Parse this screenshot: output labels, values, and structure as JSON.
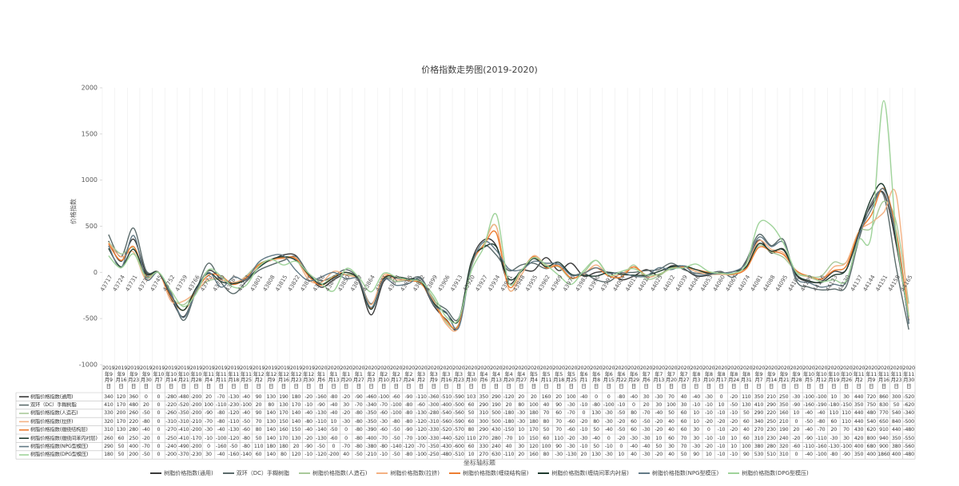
{
  "chart_data": {
    "type": "line",
    "title": "价格指数走势图(2019-2020)",
    "y_label": "价格指数",
    "x_label": "坐标轴标题",
    "categories": [
      "2019年9月9日",
      "2019年9月16日",
      "2019年9月23日",
      "2019年9月30日",
      "2019年10月7日",
      "2019年10月14日",
      "2019年10月21日",
      "2019年10月28日",
      "2019年11月4日",
      "2019年11月11日",
      "2019年11月18日",
      "2019年11月25日",
      "2019年12月2日",
      "2019年12月9日",
      "2019年12月16日",
      "2019年12月23日",
      "2019年12月30日",
      "2020年1月6日",
      "2020年1月13日",
      "2020年1月20日",
      "2020年1月27日",
      "2020年2月3日",
      "2020年2月10日",
      "2020年2月17日",
      "2020年2月24日",
      "2020年3月2日",
      "2020年3月9日",
      "2020年3月16日",
      "2020年3月23日",
      "2020年3月30日",
      "2020年4月6日",
      "2020年4月13日",
      "2020年4月20日",
      "2020年4月27日",
      "2020年5月4日",
      "2020年5月11日",
      "2020年5月18日",
      "2020年5月25日",
      "2020年6月1日",
      "2020年6月8日",
      "2020年6月15日",
      "2020年6月22日",
      "2020年6月29日",
      "2020年7月6日",
      "2020年7月13日",
      "2020年7月20日",
      "2020年7月27日",
      "2020年8月3日",
      "2020年8月10日",
      "2020年8月17日",
      "2020年8月24日",
      "2020年8月31日",
      "2020年9月7日",
      "2020年9月14日",
      "2020年9月21日",
      "2020年9月28日",
      "2020年10月5日",
      "2020年10月12日",
      "2020年10月19日",
      "2020年10月26日",
      "2020年11月2日",
      "2020年11月9日",
      "2020年11月16日",
      "2020年11月23日",
      "2020年11月30日"
    ],
    "x_tick_labels": [
      43717,
      43724,
      43731,
      43738,
      43745,
      43752,
      43759,
      43766,
      43773,
      43780,
      43787,
      43794,
      43801,
      43808,
      43815,
      43822,
      43829,
      43836,
      43843,
      43850,
      43857,
      43864,
      43871,
      43878,
      43885,
      43892,
      43899,
      43906,
      43913,
      43920,
      43927,
      43934,
      43941,
      43948,
      43955,
      43962,
      43969,
      43976,
      43983,
      43990,
      43997,
      44004,
      44011,
      44018,
      44025,
      44032,
      44039,
      44046,
      44053,
      44060,
      44067,
      44074,
      44081,
      44088,
      44095,
      44102,
      44109,
      44116,
      44123,
      44130,
      44137,
      44144,
      44151,
      44158,
      44165
    ],
    "ylim": [
      -1000,
      2000
    ],
    "yticks": [
      2000,
      1500,
      1000,
      500,
      0,
      -500,
      -1000
    ],
    "series": [
      {
        "name": "树脂价格指数(通用)",
        "color": "#3a3a3a",
        "values": [
          340,
          120,
          360,
          0,
          0,
          -280,
          -480,
          -200,
          20,
          -70,
          -130,
          -40,
          90,
          130,
          190,
          180,
          -20,
          -160,
          -80,
          -20,
          -90,
          -460,
          -100,
          -60,
          -90,
          -110,
          -360,
          -510,
          -590,
          103,
          350,
          290,
          -120,
          20,
          20,
          160,
          20,
          100,
          -40,
          0,
          0,
          -80,
          -40,
          30,
          -30,
          70,
          40,
          -40,
          -30,
          0,
          -20,
          110,
          350,
          210,
          250,
          -30,
          -100,
          -100,
          10,
          30,
          440,
          720,
          860,
          300,
          -520
        ]
      },
      {
        "name": "双环（DC）手糊树脂",
        "color": "#5b6b6b",
        "values": [
          410,
          170,
          480,
          20,
          0,
          -220,
          -520,
          -200,
          100,
          -110,
          -230,
          -100,
          20,
          80,
          130,
          170,
          -10,
          -90,
          -40,
          30,
          -70,
          -340,
          -70,
          -100,
          -80,
          -60,
          -300,
          -400,
          -500,
          60,
          290,
          190,
          20,
          80,
          100,
          40,
          90,
          -30,
          -10,
          -80,
          -100,
          -10,
          0,
          20,
          30,
          100,
          30,
          -10,
          -10,
          10,
          -50,
          130,
          410,
          290,
          350,
          -90,
          -160,
          -190,
          -180,
          -150,
          350,
          750,
          830,
          50,
          -620
        ]
      },
      {
        "name": "树脂价格指数(人造石)",
        "color": "#a9c99a",
        "values": [
          330,
          200,
          260,
          -50,
          0,
          -260,
          -350,
          -200,
          -90,
          -80,
          -120,
          -40,
          90,
          140,
          170,
          140,
          -40,
          -130,
          -40,
          -20,
          -80,
          -350,
          -60,
          -100,
          -80,
          -130,
          -280,
          -540,
          -560,
          50,
          310,
          500,
          -180,
          -30,
          180,
          70,
          60,
          -70,
          0,
          130,
          -30,
          -50,
          80,
          -70,
          -40,
          50,
          60,
          10,
          -10,
          -10,
          -10,
          50,
          290,
          220,
          160,
          10,
          -40,
          -40,
          110,
          110,
          440,
          480,
          770,
          540,
          -340
        ]
      },
      {
        "name": "树脂价格指数(拉挤)",
        "color": "#f4b183",
        "values": [
          320,
          170,
          220,
          -80,
          0,
          -310,
          -310,
          -210,
          -70,
          -80,
          -110,
          -50,
          70,
          130,
          150,
          140,
          -80,
          -110,
          10,
          -30,
          -80,
          -350,
          -30,
          -80,
          -80,
          -120,
          -310,
          -560,
          -590,
          60,
          300,
          500,
          -180,
          -30,
          180,
          80,
          70,
          -60,
          -20,
          80,
          -30,
          -20,
          60,
          -50,
          -20,
          40,
          60,
          10,
          -20,
          -20,
          -20,
          60,
          340,
          250,
          210,
          0,
          -50,
          -80,
          60,
          110,
          440,
          540,
          650,
          840,
          -500
        ]
      },
      {
        "name": "树脂价格指数(缠绕结构层)",
        "color": "#ed7d31",
        "values": [
          310,
          130,
          280,
          -40,
          0,
          -270,
          -410,
          -200,
          -30,
          -40,
          -130,
          -60,
          80,
          140,
          160,
          150,
          -40,
          -140,
          -50,
          0,
          -80,
          -390,
          -60,
          -50,
          -90,
          -120,
          -330,
          -520,
          -570,
          80,
          290,
          430,
          -150,
          10,
          170,
          50,
          70,
          -60,
          -10,
          50,
          -40,
          -50,
          60,
          -30,
          -20,
          40,
          60,
          30,
          0,
          -10,
          -20,
          40,
          270,
          230,
          190,
          20,
          -40,
          -70,
          20,
          70,
          430,
          620,
          910,
          440,
          -480
        ]
      },
      {
        "name": "树脂价格指数(缠绕间苯内衬层)",
        "color": "#1f3b2f",
        "values": [
          260,
          60,
          250,
          -20,
          0,
          -250,
          -410,
          -170,
          -10,
          -100,
          -120,
          -80,
          50,
          140,
          170,
          130,
          -20,
          -130,
          -60,
          0,
          -80,
          -400,
          -70,
          -50,
          -70,
          -100,
          -330,
          -440,
          -520,
          110,
          270,
          280,
          -70,
          10,
          150,
          60,
          110,
          -20,
          -30,
          -40,
          0,
          -20,
          -30,
          -30,
          10,
          60,
          70,
          30,
          -10,
          -10,
          10,
          60,
          310,
          230,
          240,
          -20,
          -90,
          -110,
          -30,
          30,
          420,
          800,
          940,
          350,
          -550
        ]
      },
      {
        "name": "树脂价格指数(NPG型模压)",
        "color": "#627a86",
        "values": [
          290,
          50,
          400,
          -70,
          0,
          -240,
          -490,
          -200,
          0,
          -160,
          -50,
          -80,
          110,
          180,
          180,
          20,
          -90,
          -50,
          0,
          -70,
          -80,
          -380,
          -80,
          -140,
          -120,
          -70,
          -350,
          -430,
          -600,
          60,
          330,
          240,
          40,
          30,
          120,
          100,
          90,
          -30,
          -10,
          50,
          -10,
          0,
          -40,
          -40,
          50,
          30,
          70,
          -30,
          -20,
          -10,
          10,
          100,
          380,
          280,
          320,
          -60,
          -110,
          -160,
          -130,
          -100,
          400,
          680,
          900,
          380,
          -560
        ]
      },
      {
        "name": "树脂价格指数(DPG型模压)",
        "color": "#9fd39a",
        "values": [
          180,
          50,
          200,
          -50,
          0,
          -200,
          -370,
          -230,
          30,
          -40,
          -160,
          -140,
          60,
          140,
          80,
          120,
          -10,
          -120,
          -200,
          40,
          -50,
          -210,
          -10,
          -50,
          -80,
          -100,
          -250,
          -480,
          -510,
          10,
          270,
          630,
          -110,
          20,
          160,
          80,
          -30,
          -130,
          20,
          130,
          -30,
          10,
          40,
          -30,
          -20,
          40,
          50,
          90,
          10,
          -10,
          -10,
          90,
          530,
          510,
          310,
          0,
          -40,
          -100,
          -80,
          -90,
          350,
          400,
          1860,
          400,
          -480
        ]
      }
    ]
  }
}
